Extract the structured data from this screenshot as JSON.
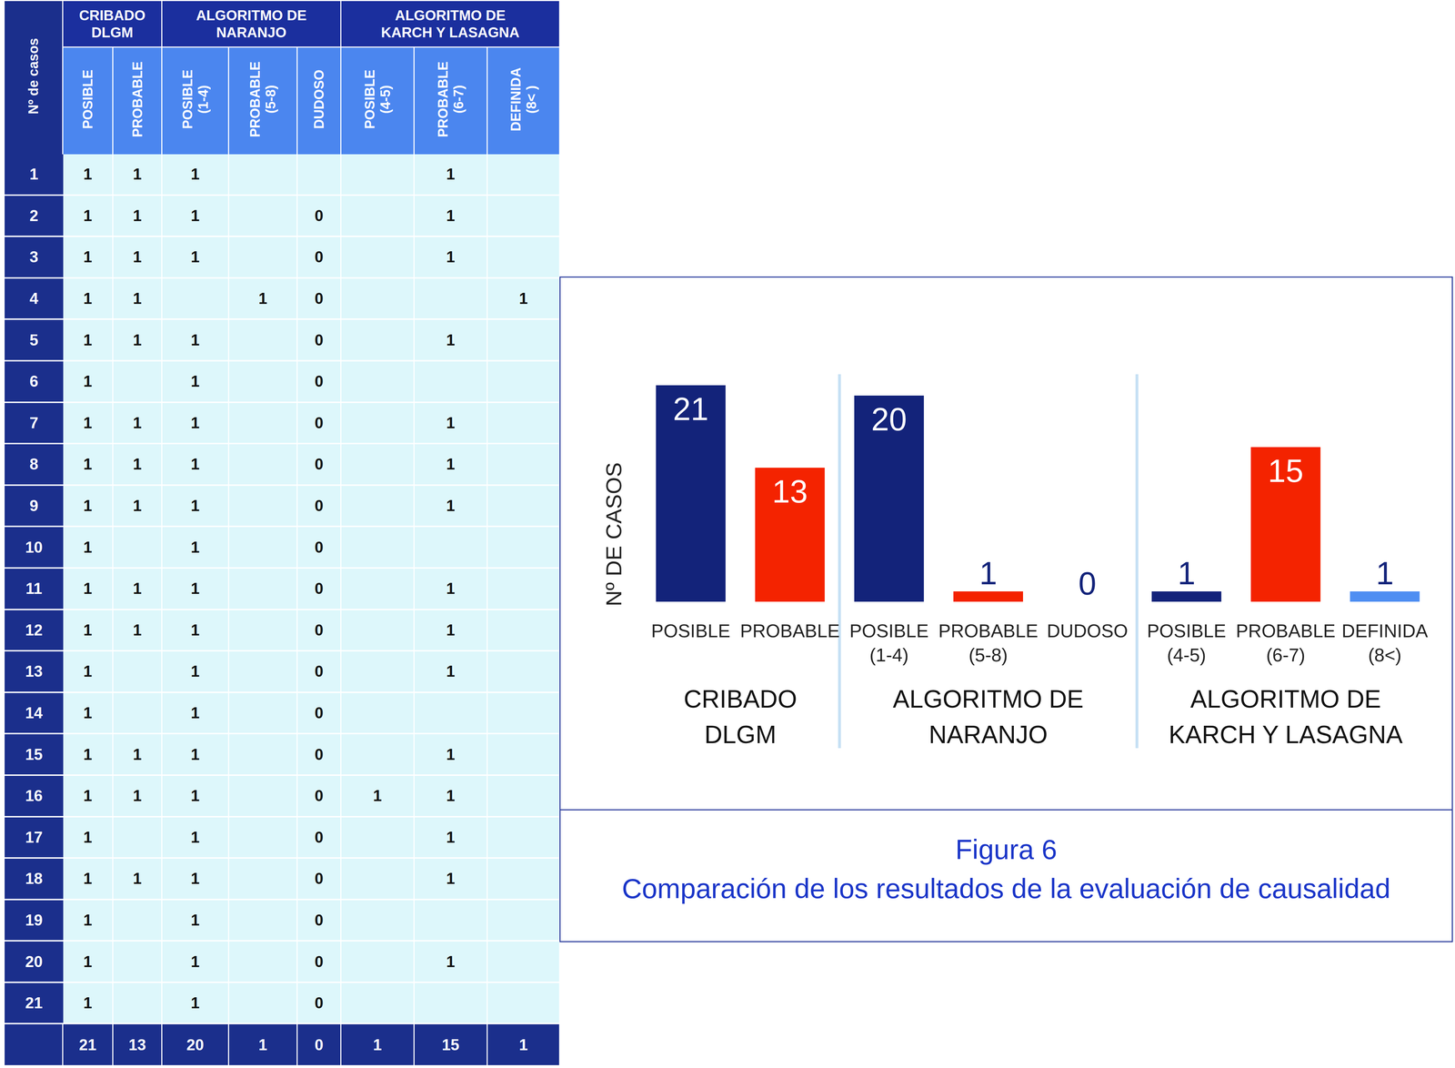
{
  "table": {
    "corner": "Nº de casos",
    "groups": [
      {
        "label": "CRIBADO\nDLGM",
        "columns": [
          "POSIBLE",
          "PROBABLE"
        ]
      },
      {
        "label": "ALGORITMO DE\nNARANJO",
        "columns": [
          "POSIBLE\n(1-4)",
          "PROBABLE\n(5-8)",
          "DUDOSO"
        ]
      },
      {
        "label": "ALGORITMO DE\nKARCH Y LASAGNA",
        "columns": [
          "POSIBLE\n(4-5)",
          "PROBABLE\n(6-7)",
          "DEFINIDA\n(8< )"
        ]
      }
    ],
    "rows": [
      {
        "case": 1,
        "cells": [
          1,
          1,
          1,
          null,
          null,
          null,
          1,
          null
        ]
      },
      {
        "case": 2,
        "cells": [
          1,
          1,
          1,
          null,
          0,
          null,
          1,
          null
        ]
      },
      {
        "case": 3,
        "cells": [
          1,
          1,
          1,
          null,
          0,
          null,
          1,
          null
        ]
      },
      {
        "case": 4,
        "cells": [
          1,
          1,
          null,
          1,
          0,
          null,
          null,
          1
        ]
      },
      {
        "case": 5,
        "cells": [
          1,
          1,
          1,
          null,
          0,
          null,
          1,
          null
        ]
      },
      {
        "case": 6,
        "cells": [
          1,
          null,
          1,
          null,
          0,
          null,
          null,
          null
        ]
      },
      {
        "case": 7,
        "cells": [
          1,
          1,
          1,
          null,
          0,
          null,
          1,
          null
        ]
      },
      {
        "case": 8,
        "cells": [
          1,
          1,
          1,
          null,
          0,
          null,
          1,
          null
        ]
      },
      {
        "case": 9,
        "cells": [
          1,
          1,
          1,
          null,
          0,
          null,
          1,
          null
        ]
      },
      {
        "case": 10,
        "cells": [
          1,
          null,
          1,
          null,
          0,
          null,
          null,
          null
        ]
      },
      {
        "case": 11,
        "cells": [
          1,
          1,
          1,
          null,
          0,
          null,
          1,
          null
        ]
      },
      {
        "case": 12,
        "cells": [
          1,
          1,
          1,
          null,
          0,
          null,
          1,
          null
        ]
      },
      {
        "case": 13,
        "cells": [
          1,
          null,
          1,
          null,
          0,
          null,
          1,
          null
        ]
      },
      {
        "case": 14,
        "cells": [
          1,
          null,
          1,
          null,
          0,
          null,
          null,
          null
        ]
      },
      {
        "case": 15,
        "cells": [
          1,
          1,
          1,
          null,
          0,
          null,
          1,
          null
        ]
      },
      {
        "case": 16,
        "cells": [
          1,
          1,
          1,
          null,
          0,
          1,
          1,
          null
        ]
      },
      {
        "case": 17,
        "cells": [
          1,
          null,
          1,
          null,
          0,
          null,
          1,
          null
        ]
      },
      {
        "case": 18,
        "cells": [
          1,
          1,
          1,
          null,
          0,
          null,
          1,
          null
        ]
      },
      {
        "case": 19,
        "cells": [
          1,
          null,
          1,
          null,
          0,
          null,
          null,
          null
        ]
      },
      {
        "case": 20,
        "cells": [
          1,
          null,
          1,
          null,
          0,
          null,
          1,
          null
        ]
      },
      {
        "case": 21,
        "cells": [
          1,
          null,
          1,
          null,
          0,
          null,
          null,
          null
        ]
      }
    ],
    "totals": [
      21,
      13,
      20,
      1,
      0,
      1,
      15,
      1
    ]
  },
  "chart_data": {
    "type": "bar",
    "ylabel": "Nº DE CASOS",
    "categories": [
      "POSIBLE",
      "PROBABLE",
      "POSIBLE\n(1-4)",
      "PROBABLE\n(5-8)",
      "DUDOSO",
      "POSIBLE\n(4-5)",
      "PROBABLE\n(6-7)",
      "DEFINIDA\n(8<)"
    ],
    "values": [
      21,
      13,
      20,
      1,
      0,
      1,
      15,
      1
    ],
    "colors": [
      "#13237a",
      "#f42300",
      "#13237a",
      "#f42300",
      "#13237a",
      "#13237a",
      "#f42300",
      "#4f8ef2"
    ],
    "groups": [
      {
        "label": "CRIBADO\nDLGM",
        "size": 2
      },
      {
        "label": "ALGORITMO DE\nNARANJO",
        "size": 3
      },
      {
        "label": "ALGORITMO DE\nKARCH Y LASAGNA",
        "size": 3
      }
    ],
    "ylim": [
      0,
      21
    ],
    "tick_labels": "x",
    "data_labels": true,
    "grid": false
  },
  "caption": {
    "label": "Figura 6",
    "text": "Comparación de los resultados de la evaluación de causalidad"
  }
}
